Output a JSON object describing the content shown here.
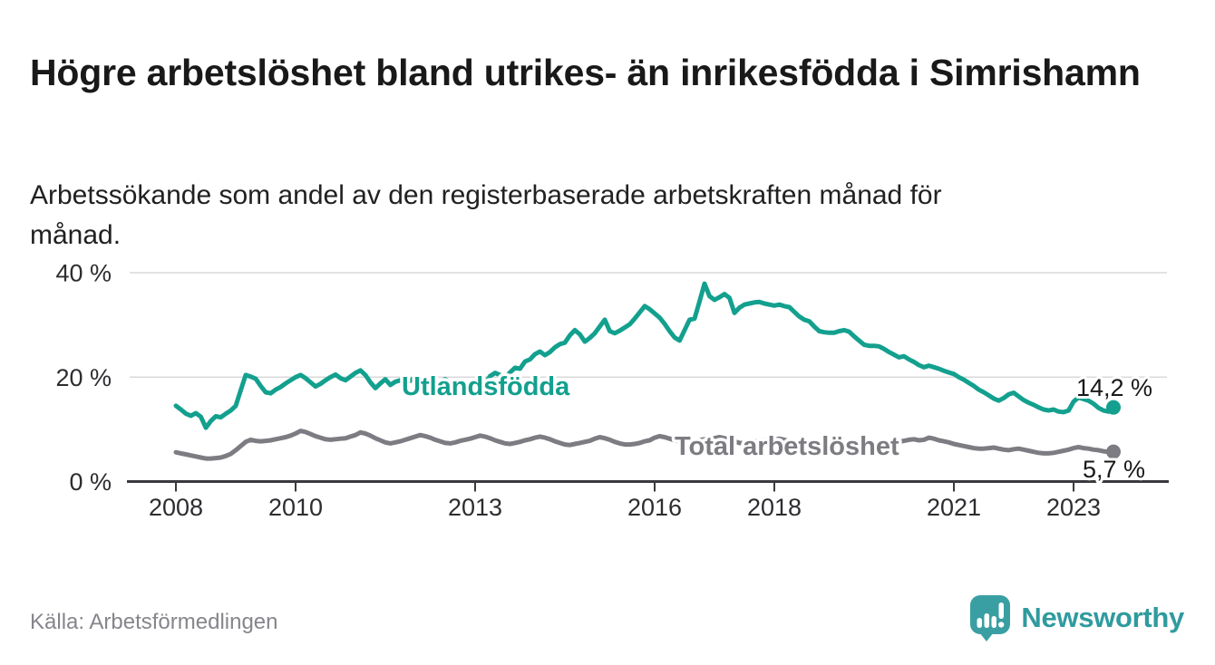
{
  "header": {
    "title": "Högre arbetslöshet bland utrikes- än inrikesfödda i Simrishamn",
    "subtitle_lines": [
      "Arbetssökande som andel av den registerbaserade arbetskraften månad för",
      "månad."
    ]
  },
  "footer": {
    "source": "Källa: Arbetsförmedlingen",
    "logo_text": "Newsworthy",
    "logo_color": "#3a9fa2"
  },
  "chart_data": {
    "type": "line",
    "title": "Högre arbetslöshet bland utrikes- än inrikesfödda i Simrishamn",
    "subtitle": "Arbetssökande som andel av den registerbaserade arbetskraften månad för månad.",
    "x_start": 2008.0,
    "x_step_months": 1,
    "x_end_label_period": "2023-09",
    "xlim": [
      2007.9,
      2023.9
    ],
    "ylim": [
      0,
      40
    ],
    "grid": "horizontal",
    "legend": "inline-labels",
    "y_ticks": [
      {
        "value": 0,
        "label": "0 %"
      },
      {
        "value": 20,
        "label": "20 %"
      },
      {
        "value": 40,
        "label": "40 %"
      }
    ],
    "x_ticks": [
      {
        "value": 2008,
        "label": "2008"
      },
      {
        "value": 2010,
        "label": "2010"
      },
      {
        "value": 2013,
        "label": "2013"
      },
      {
        "value": 2016,
        "label": "2016"
      },
      {
        "value": 2018,
        "label": "2018"
      },
      {
        "value": 2021,
        "label": "2021"
      },
      {
        "value": 2023,
        "label": "2023"
      }
    ],
    "series": [
      {
        "name": "Utlandsfödda",
        "color": "#13a08e",
        "end_label": "14,2 %",
        "end_value": 14.2,
        "values": [
          14.5,
          13.8,
          13.0,
          12.6,
          13.1,
          12.4,
          10.3,
          11.6,
          12.5,
          12.3,
          13.0,
          13.6,
          14.5,
          17.5,
          20.4,
          20.1,
          19.7,
          18.3,
          17.1,
          16.9,
          17.6,
          18.1,
          18.8,
          19.4,
          20.0,
          20.4,
          19.8,
          19.0,
          18.2,
          18.7,
          19.4,
          20.0,
          20.5,
          19.8,
          19.4,
          20.1,
          20.8,
          21.3,
          20.4,
          19.0,
          17.9,
          18.8,
          19.6,
          18.5,
          19.1,
          19.4,
          19.0,
          19.3,
          20.0,
          19.5,
          18.4,
          17.6,
          18.4,
          19.2,
          19.6,
          18.9,
          18.4,
          19.3,
          18.6,
          17.8,
          18.7,
          19.4,
          18.8,
          20.2,
          20.8,
          20.4,
          19.9,
          20.9,
          21.8,
          21.6,
          23.0,
          23.4,
          24.4,
          24.9,
          24.2,
          24.8,
          25.7,
          26.3,
          26.6,
          28.0,
          29.0,
          28.2,
          26.8,
          27.5,
          28.4,
          29.7,
          31.0,
          28.8,
          28.4,
          28.9,
          29.5,
          30.1,
          31.2,
          32.4,
          33.6,
          33.0,
          32.2,
          31.4,
          30.2,
          28.8,
          27.6,
          27.0,
          29.0,
          31.0,
          31.2,
          34.5,
          37.9,
          35.5,
          34.8,
          35.3,
          35.9,
          35.2,
          32.3,
          33.3,
          33.9,
          34.1,
          34.3,
          34.4,
          34.1,
          33.9,
          33.7,
          33.9,
          33.6,
          33.4,
          32.5,
          31.6,
          31.0,
          30.7,
          29.7,
          28.8,
          28.6,
          28.5,
          28.5,
          28.8,
          29.0,
          28.7,
          27.8,
          27.0,
          26.2,
          26.0,
          26.0,
          25.9,
          25.4,
          24.8,
          24.3,
          23.8,
          24.0,
          23.4,
          22.9,
          22.3,
          21.9,
          22.2,
          21.9,
          21.6,
          21.2,
          20.9,
          20.6,
          20.0,
          19.5,
          18.9,
          18.3,
          17.6,
          17.1,
          16.5,
          15.9,
          15.5,
          16.0,
          16.7,
          17.0,
          16.3,
          15.6,
          15.1,
          14.7,
          14.2,
          13.8,
          13.6,
          13.8,
          13.4,
          13.3,
          13.6,
          15.3,
          16.1,
          15.8,
          15.5,
          14.9,
          14.1,
          13.6,
          13.4,
          14.2
        ]
      },
      {
        "name": "Total arbetslöshet",
        "color": "#7c7c82",
        "end_label": "5,7 %",
        "end_value": 5.7,
        "values": [
          5.6,
          5.4,
          5.2,
          5.0,
          4.8,
          4.6,
          4.4,
          4.4,
          4.5,
          4.6,
          4.9,
          5.3,
          6.0,
          6.8,
          7.6,
          8.0,
          7.8,
          7.7,
          7.8,
          7.9,
          8.1,
          8.3,
          8.5,
          8.8,
          9.2,
          9.7,
          9.5,
          9.1,
          8.7,
          8.4,
          8.1,
          8.0,
          8.1,
          8.2,
          8.3,
          8.6,
          8.9,
          9.4,
          9.2,
          8.8,
          8.3,
          7.9,
          7.5,
          7.3,
          7.5,
          7.7,
          8.0,
          8.3,
          8.6,
          8.9,
          8.7,
          8.4,
          8.0,
          7.7,
          7.4,
          7.3,
          7.5,
          7.8,
          8.0,
          8.2,
          8.5,
          8.8,
          8.6,
          8.3,
          7.9,
          7.6,
          7.3,
          7.2,
          7.4,
          7.6,
          7.9,
          8.1,
          8.4,
          8.6,
          8.4,
          8.1,
          7.7,
          7.4,
          7.1,
          7.0,
          7.2,
          7.4,
          7.6,
          7.8,
          8.2,
          8.5,
          8.3,
          8.0,
          7.6,
          7.3,
          7.1,
          7.1,
          7.2,
          7.4,
          7.7,
          7.9,
          8.4,
          8.7,
          8.5,
          8.2,
          7.9,
          7.7,
          7.5,
          7.5,
          7.7,
          7.9,
          8.1,
          8.3,
          8.3,
          8.5,
          8.3,
          8.0,
          7.7,
          7.4,
          7.3,
          7.4,
          7.6,
          7.8,
          7.9,
          8.0,
          8.0,
          8.2,
          8.0,
          7.7,
          7.4,
          7.1,
          6.9,
          6.9,
          7.0,
          7.1,
          7.3,
          7.4,
          7.5,
          7.6,
          7.4,
          7.2,
          7.0,
          6.8,
          6.7,
          6.8,
          6.9,
          7.0,
          7.2,
          7.3,
          7.4,
          7.6,
          7.8,
          8.0,
          8.1,
          7.9,
          8.0,
          8.4,
          8.2,
          7.9,
          7.7,
          7.5,
          7.2,
          7.0,
          6.8,
          6.6,
          6.4,
          6.3,
          6.3,
          6.4,
          6.5,
          6.3,
          6.1,
          6.0,
          6.2,
          6.3,
          6.1,
          5.9,
          5.7,
          5.5,
          5.4,
          5.4,
          5.5,
          5.7,
          5.9,
          6.1,
          6.4,
          6.6,
          6.4,
          6.3,
          6.1,
          6.0,
          5.8,
          5.7,
          5.7
        ]
      }
    ]
  }
}
